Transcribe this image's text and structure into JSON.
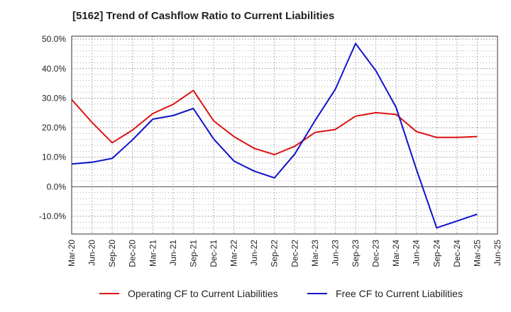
{
  "chart_data": {
    "type": "line",
    "title": "[5162]  Trend of Cashflow Ratio to Current Liabilities",
    "xlabel": "",
    "ylabel": "",
    "x_ticks": [
      "Mar-20",
      "Jun-20",
      "Sep-20",
      "Dec-20",
      "Mar-21",
      "Jun-21",
      "Sep-21",
      "Dec-21",
      "Mar-22",
      "Jun-22",
      "Sep-22",
      "Dec-22",
      "Mar-23",
      "Jun-23",
      "Sep-23",
      "Dec-23",
      "Mar-24",
      "Jun-24",
      "Sep-24",
      "Dec-24",
      "Mar-25",
      "Jun-25"
    ],
    "y_ticks": [
      50,
      40,
      30,
      20,
      10,
      0,
      -10
    ],
    "y_tick_labels": [
      "50.0%",
      "40.0%",
      "30.0%",
      "20.0%",
      "10.0%",
      "0.0%",
      "-10.0%"
    ],
    "ylim": [
      -16,
      51
    ],
    "grid": true,
    "legend_position": "bottom",
    "series": [
      {
        "name": "Operating CF to Current Liabilities",
        "color": "#dd1111",
        "values": [
          29.5,
          21.8,
          14.9,
          19.2,
          24.8,
          27.9,
          32.6,
          22.3,
          17.0,
          13.0,
          10.9,
          13.7,
          18.4,
          19.4,
          23.9,
          25.1,
          24.5,
          18.7,
          16.7,
          16.7,
          17.0,
          null
        ]
      },
      {
        "name": "Free CF to Current Liabilities",
        "color": "#1111cc",
        "values": [
          7.7,
          8.3,
          9.6,
          15.9,
          22.9,
          24.1,
          26.5,
          16.2,
          8.7,
          5.3,
          3.0,
          11.1,
          22.4,
          33.0,
          48.5,
          39.3,
          26.9,
          5.9,
          -13.9,
          -11.6,
          -9.3,
          null
        ]
      }
    ]
  }
}
